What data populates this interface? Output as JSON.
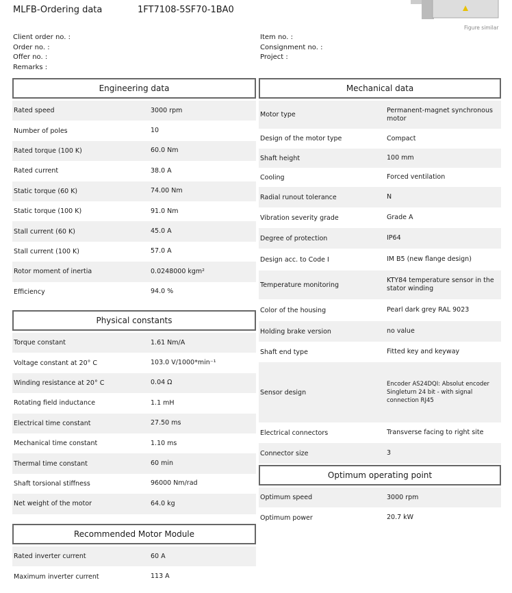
{
  "header": {
    "title": "MLFB-Ordering data",
    "mlfb": "1FT7108-5SF70-1BA0",
    "figure_caption": "Figure similar"
  },
  "meta_left": [
    "Client order no. :",
    "Order no. :",
    "Offer no. :",
    "Remarks :"
  ],
  "meta_right": [
    "Item no. :",
    "Consignment no. :",
    "Project :"
  ],
  "engineering": {
    "title": "Engineering data",
    "rows": [
      [
        "Rated speed",
        "3000 rpm"
      ],
      [
        "Number of poles",
        "10"
      ],
      [
        "Rated torque (100 K)",
        "60.0 Nm"
      ],
      [
        "Rated current",
        "38.0 A"
      ],
      [
        "Static torque (60 K)",
        "74.00 Nm"
      ],
      [
        "Static torque (100 K)",
        "91.0 Nm"
      ],
      [
        "Stall current (60 K)",
        "45.0 A"
      ],
      [
        "Stall current (100 K)",
        "57.0 A"
      ],
      [
        "Rotor moment of inertia",
        "0.0248000 kgm²"
      ],
      [
        "Efficiency",
        "94.0 %"
      ]
    ]
  },
  "physical": {
    "title": "Physical constants",
    "rows": [
      [
        "Torque constant",
        "1.61 Nm/A"
      ],
      [
        "Voltage constant at 20° C",
        "103.0 V/1000*min⁻¹"
      ],
      [
        "Winding resistance at 20° C",
        "0.04 Ω"
      ],
      [
        "Rotating field inductance",
        "1.1 mH"
      ],
      [
        "Electrical time constant",
        "27.50 ms"
      ],
      [
        "Mechanical time constant",
        "1.10 ms"
      ],
      [
        "Thermal time constant",
        "60 min"
      ],
      [
        "Shaft torsional stiffness",
        "96000 Nm/rad"
      ],
      [
        "Net weight of the motor",
        "64.0 kg"
      ]
    ]
  },
  "motor_module": {
    "title": "Recommended Motor Module",
    "rows": [
      [
        "Rated inverter current",
        "60 A"
      ],
      [
        "Maximum inverter current",
        "113 A"
      ]
    ]
  },
  "mechanical": {
    "title": "Mechanical data",
    "rows": [
      [
        "Motor type",
        "Permanent-magnet synchronous motor"
      ],
      [
        "Design of the motor type",
        "Compact"
      ],
      [
        "Shaft height",
        "100 mm"
      ],
      [
        "Cooling",
        "Forced ventilation"
      ],
      [
        "Radial runout tolerance",
        "N"
      ],
      [
        "Vibration severity grade",
        "Grade A"
      ],
      [
        "Degree of protection",
        "IP64"
      ],
      [
        "Design acc. to Code I",
        "IM B5 (new flange design)"
      ],
      [
        "Temperature monitoring",
        "KTY84 temperature sensor in the stator winding"
      ],
      [
        "Color of the housing",
        "Pearl dark grey RAL 9023"
      ],
      [
        "Holding brake version",
        "no value"
      ],
      [
        "Shaft end type",
        "Fitted key and keyway"
      ],
      [
        "Sensor design",
        "Encoder AS24DQI: Absolut encoder Singleturn 24 bit - with signal connection RJ45"
      ],
      [
        "Electrical connectors",
        "Transverse facing to right site"
      ],
      [
        "Connector size",
        "3"
      ]
    ]
  },
  "optimum": {
    "title": "Optimum operating point",
    "rows": [
      [
        "Optimum speed",
        "3000 rpm"
      ],
      [
        "Optimum power",
        "20.7 kW"
      ]
    ]
  }
}
